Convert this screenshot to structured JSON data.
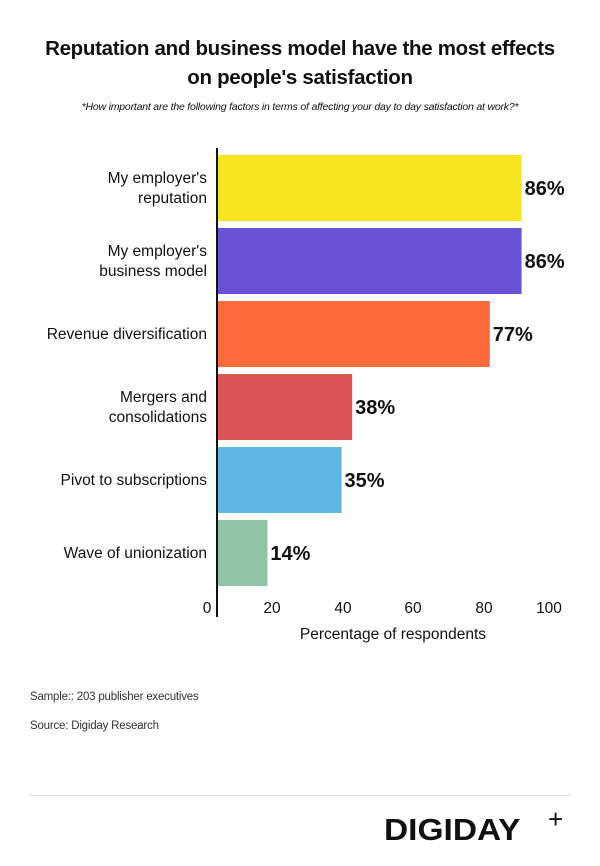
{
  "header": {
    "title_line1": "Reputation and business model have the most effects",
    "title_line2": "on people's satisfaction",
    "subtitle": "*How important are the following factors in terms of affecting your day to day satisfaction at work?*"
  },
  "chart_data": {
    "type": "bar",
    "orientation": "horizontal",
    "title": "Reputation and business model have the most effects on people's satisfaction",
    "subtitle": "*How important are the following factors in terms of affecting your day to day satisfaction at work?*",
    "categories": [
      [
        "My employer's",
        "reputation"
      ],
      [
        "My employer's",
        "business model"
      ],
      [
        "Revenue diversification"
      ],
      [
        "Mergers and",
        "consolidations"
      ],
      [
        "Pivot to subscriptions"
      ],
      [
        "Wave of unionization"
      ]
    ],
    "values": [
      86,
      86,
      77,
      38,
      35,
      14
    ],
    "value_labels": [
      "86%",
      "86%",
      "77%",
      "38%",
      "35%",
      "14%"
    ],
    "colors": [
      "#f6e41f",
      "#6a52d7",
      "#fd693a",
      "#dc5555",
      "#60b6e3",
      "#8fc4a6"
    ],
    "xlabel": "Percentage of respondents",
    "ylabel": "",
    "xlim": [
      0,
      100
    ],
    "xticks": [
      0,
      20,
      40,
      60,
      80,
      100
    ],
    "xtick_labels": [
      "0",
      "20",
      "40",
      "60",
      "80",
      "100"
    ],
    "grid": false,
    "legend": "none"
  },
  "footer": {
    "sample": "Sample:: 203 publisher executives",
    "source": "Source: Digiday Research",
    "logo_text": "DIGIDAY",
    "logo_plus": "+"
  }
}
